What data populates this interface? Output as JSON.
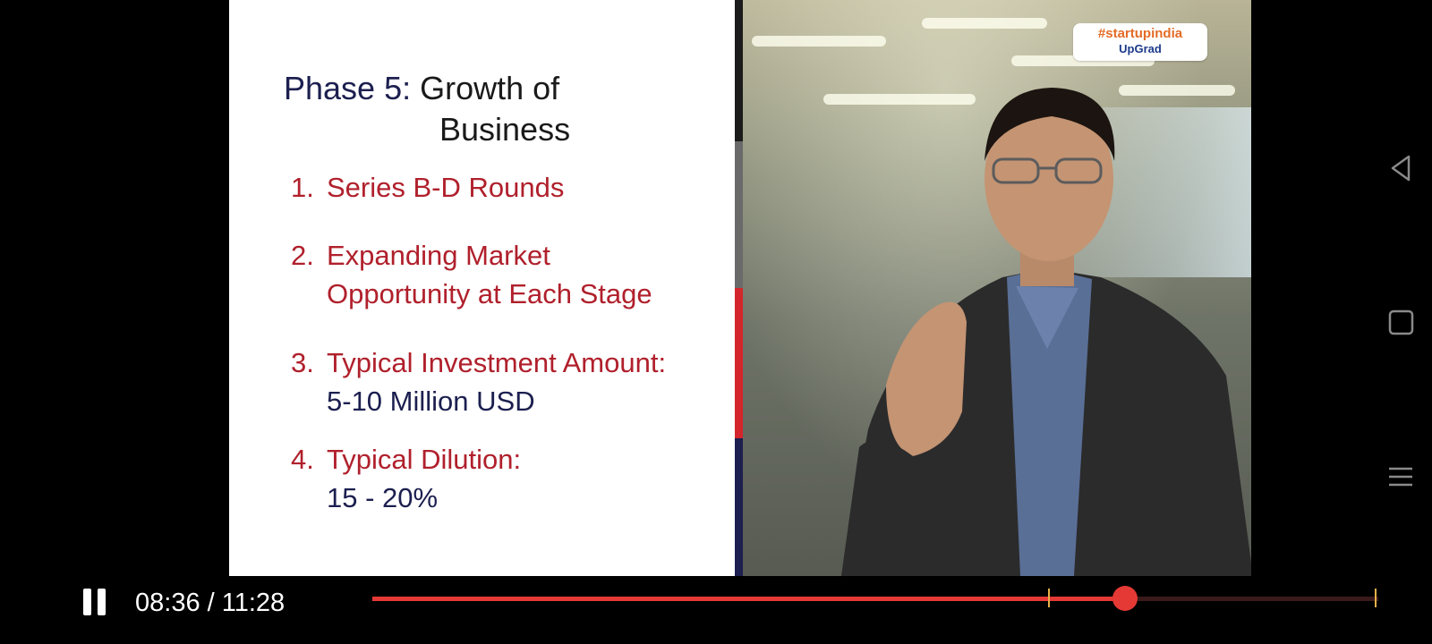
{
  "slide": {
    "title_prefix": "Phase 5:",
    "title_line1": "Growth of",
    "title_line2": "Business",
    "points": [
      {
        "num": "1.",
        "line1": "Series B-D Rounds",
        "line2": "",
        "value": ""
      },
      {
        "num": "2.",
        "line1": "Expanding Market",
        "line2": "Opportunity at Each Stage",
        "value": ""
      },
      {
        "num": "3.",
        "line1": "Typical Investment Amount:",
        "line2": "",
        "value": "5-10 Million USD"
      },
      {
        "num": "4.",
        "line1": "Typical Dilution:",
        "line2": "",
        "value": "15 - 20%"
      }
    ]
  },
  "watermark": {
    "line1": "#startupindia",
    "line2": "UpGrad"
  },
  "player": {
    "state_icon": "pause-icon",
    "time_current": "08:36",
    "time_separator": " / ",
    "time_total": "11:28",
    "progress_fraction": 0.7486,
    "chapter_markers": [
      0.6715,
      0.9965
    ],
    "played_color": "#e53935",
    "marker_color": "#e8b04a"
  },
  "nav": {
    "icons": [
      "back-icon",
      "home-icon",
      "recents-icon"
    ]
  }
}
